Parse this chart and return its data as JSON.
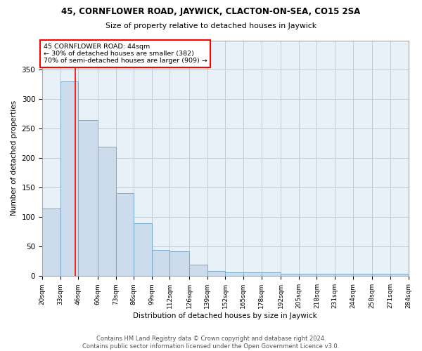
{
  "title1": "45, CORNFLOWER ROAD, JAYWICK, CLACTON-ON-SEA, CO15 2SA",
  "title2": "Size of property relative to detached houses in Jaywick",
  "xlabel": "Distribution of detached houses by size in Jaywick",
  "ylabel": "Number of detached properties",
  "footer1": "Contains HM Land Registry data © Crown copyright and database right 2024.",
  "footer2": "Contains public sector information licensed under the Open Government Licence v3.0.",
  "bin_edges": [
    20,
    33,
    46,
    60,
    73,
    86,
    99,
    112,
    126,
    139,
    152,
    165,
    178,
    192,
    205,
    218,
    231,
    244,
    258,
    271,
    284
  ],
  "bar_heights": [
    115,
    330,
    265,
    220,
    141,
    90,
    45,
    42,
    20,
    9,
    6,
    6,
    6,
    4,
    4,
    4,
    4,
    4,
    4,
    4
  ],
  "bar_color": "#ccdcec",
  "bar_edge_color": "#7aaac8",
  "grid_color": "#c0ccd8",
  "background_color": "#e8f0f8",
  "red_line_x": 44,
  "annotation_text": "45 CORNFLOWER ROAD: 44sqm\n← 30% of detached houses are smaller (382)\n70% of semi-detached houses are larger (909) →",
  "annotation_box_color": "white",
  "annotation_box_edge": "red",
  "red_line_color": "red",
  "ylim_max": 400,
  "yticks": [
    0,
    50,
    100,
    150,
    200,
    250,
    300,
    350
  ],
  "tick_labels": [
    "20sqm",
    "33sqm",
    "46sqm",
    "60sqm",
    "73sqm",
    "86sqm",
    "99sqm",
    "112sqm",
    "126sqm",
    "139sqm",
    "152sqm",
    "165sqm",
    "178sqm",
    "192sqm",
    "205sqm",
    "218sqm",
    "231sqm",
    "244sqm",
    "258sqm",
    "271sqm",
    "284sqm"
  ]
}
